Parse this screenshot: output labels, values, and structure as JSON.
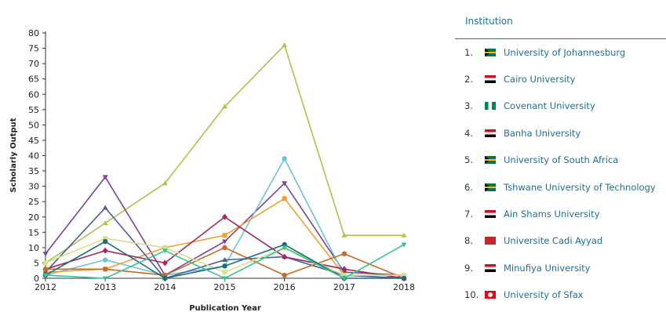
{
  "chart_data": {
    "type": "line",
    "x": [
      2012,
      2013,
      2014,
      2015,
      2016,
      2017,
      2018
    ],
    "xlabel": "Publication Year",
    "ylabel": "Scholarly Output",
    "ylim": [
      0,
      80
    ],
    "yticks": [
      0,
      5,
      10,
      15,
      20,
      25,
      30,
      35,
      40,
      45,
      50,
      55,
      60,
      65,
      70,
      75,
      80
    ],
    "series": [
      {
        "name": "University of Johannesburg",
        "color": "#a8c74a",
        "marker": "triangle-up",
        "values": [
          5,
          18,
          31,
          56,
          76,
          14,
          14
        ]
      },
      {
        "name": "Cairo University",
        "color": "#7a4499",
        "marker": "triangle-down",
        "values": [
          8,
          33,
          1,
          12,
          31,
          2,
          1
        ]
      },
      {
        "name": "Covenant University",
        "color": "#6cc3d9",
        "marker": "circle",
        "values": [
          1,
          6,
          1,
          4,
          39,
          1,
          0
        ]
      },
      {
        "name": "Banha University",
        "color": "#f0a030",
        "marker": "square",
        "values": [
          2,
          3,
          10,
          14,
          26,
          1,
          0
        ]
      },
      {
        "name": "University of South Africa",
        "color": "#4a5e9a",
        "marker": "triangle-up",
        "values": [
          2,
          23,
          0,
          6,
          7,
          1,
          0
        ]
      },
      {
        "name": "Tshwane University of Technology",
        "color": "#a12b60",
        "marker": "diamond",
        "values": [
          3,
          9,
          5,
          20,
          7,
          3,
          0
        ]
      },
      {
        "name": "Ain Shams University",
        "color": "#c86b2a",
        "marker": "circle",
        "values": [
          3,
          3,
          1,
          10,
          1,
          8,
          0
        ]
      },
      {
        "name": "Universite Cadi Ayyad",
        "color": "#dadf8a",
        "marker": "square",
        "values": [
          5,
          13,
          10,
          2,
          10,
          1,
          1
        ]
      },
      {
        "name": "Minufiya University",
        "color": "#1c6c7a",
        "marker": "circle",
        "values": [
          1,
          12,
          0,
          4,
          11,
          0,
          0
        ]
      },
      {
        "name": "University of Sfax",
        "color": "#3cc290",
        "marker": "triangle-down",
        "values": [
          1,
          0,
          9,
          0,
          10,
          0,
          11
        ]
      }
    ]
  },
  "panel": {
    "header": "Institution",
    "institutions": [
      {
        "rank": "1.",
        "name": "University of Johannesburg",
        "flag": "za"
      },
      {
        "rank": "2.",
        "name": "Cairo University",
        "flag": "eg"
      },
      {
        "rank": "3.",
        "name": "Covenant University",
        "flag": "ng"
      },
      {
        "rank": "4.",
        "name": "Banha University",
        "flag": "eg"
      },
      {
        "rank": "5.",
        "name": "University of South Africa",
        "flag": "za"
      },
      {
        "rank": "6.",
        "name": "Tshwane University of Technology",
        "flag": "za"
      },
      {
        "rank": "7.",
        "name": "Ain Shams University",
        "flag": "eg"
      },
      {
        "rank": "8.",
        "name": "Universite Cadi Ayyad",
        "flag": "ma"
      },
      {
        "rank": "9.",
        "name": "Minufiya University",
        "flag": "eg"
      },
      {
        "rank": "10.",
        "name": "University of Sfax",
        "flag": "tn"
      }
    ]
  }
}
